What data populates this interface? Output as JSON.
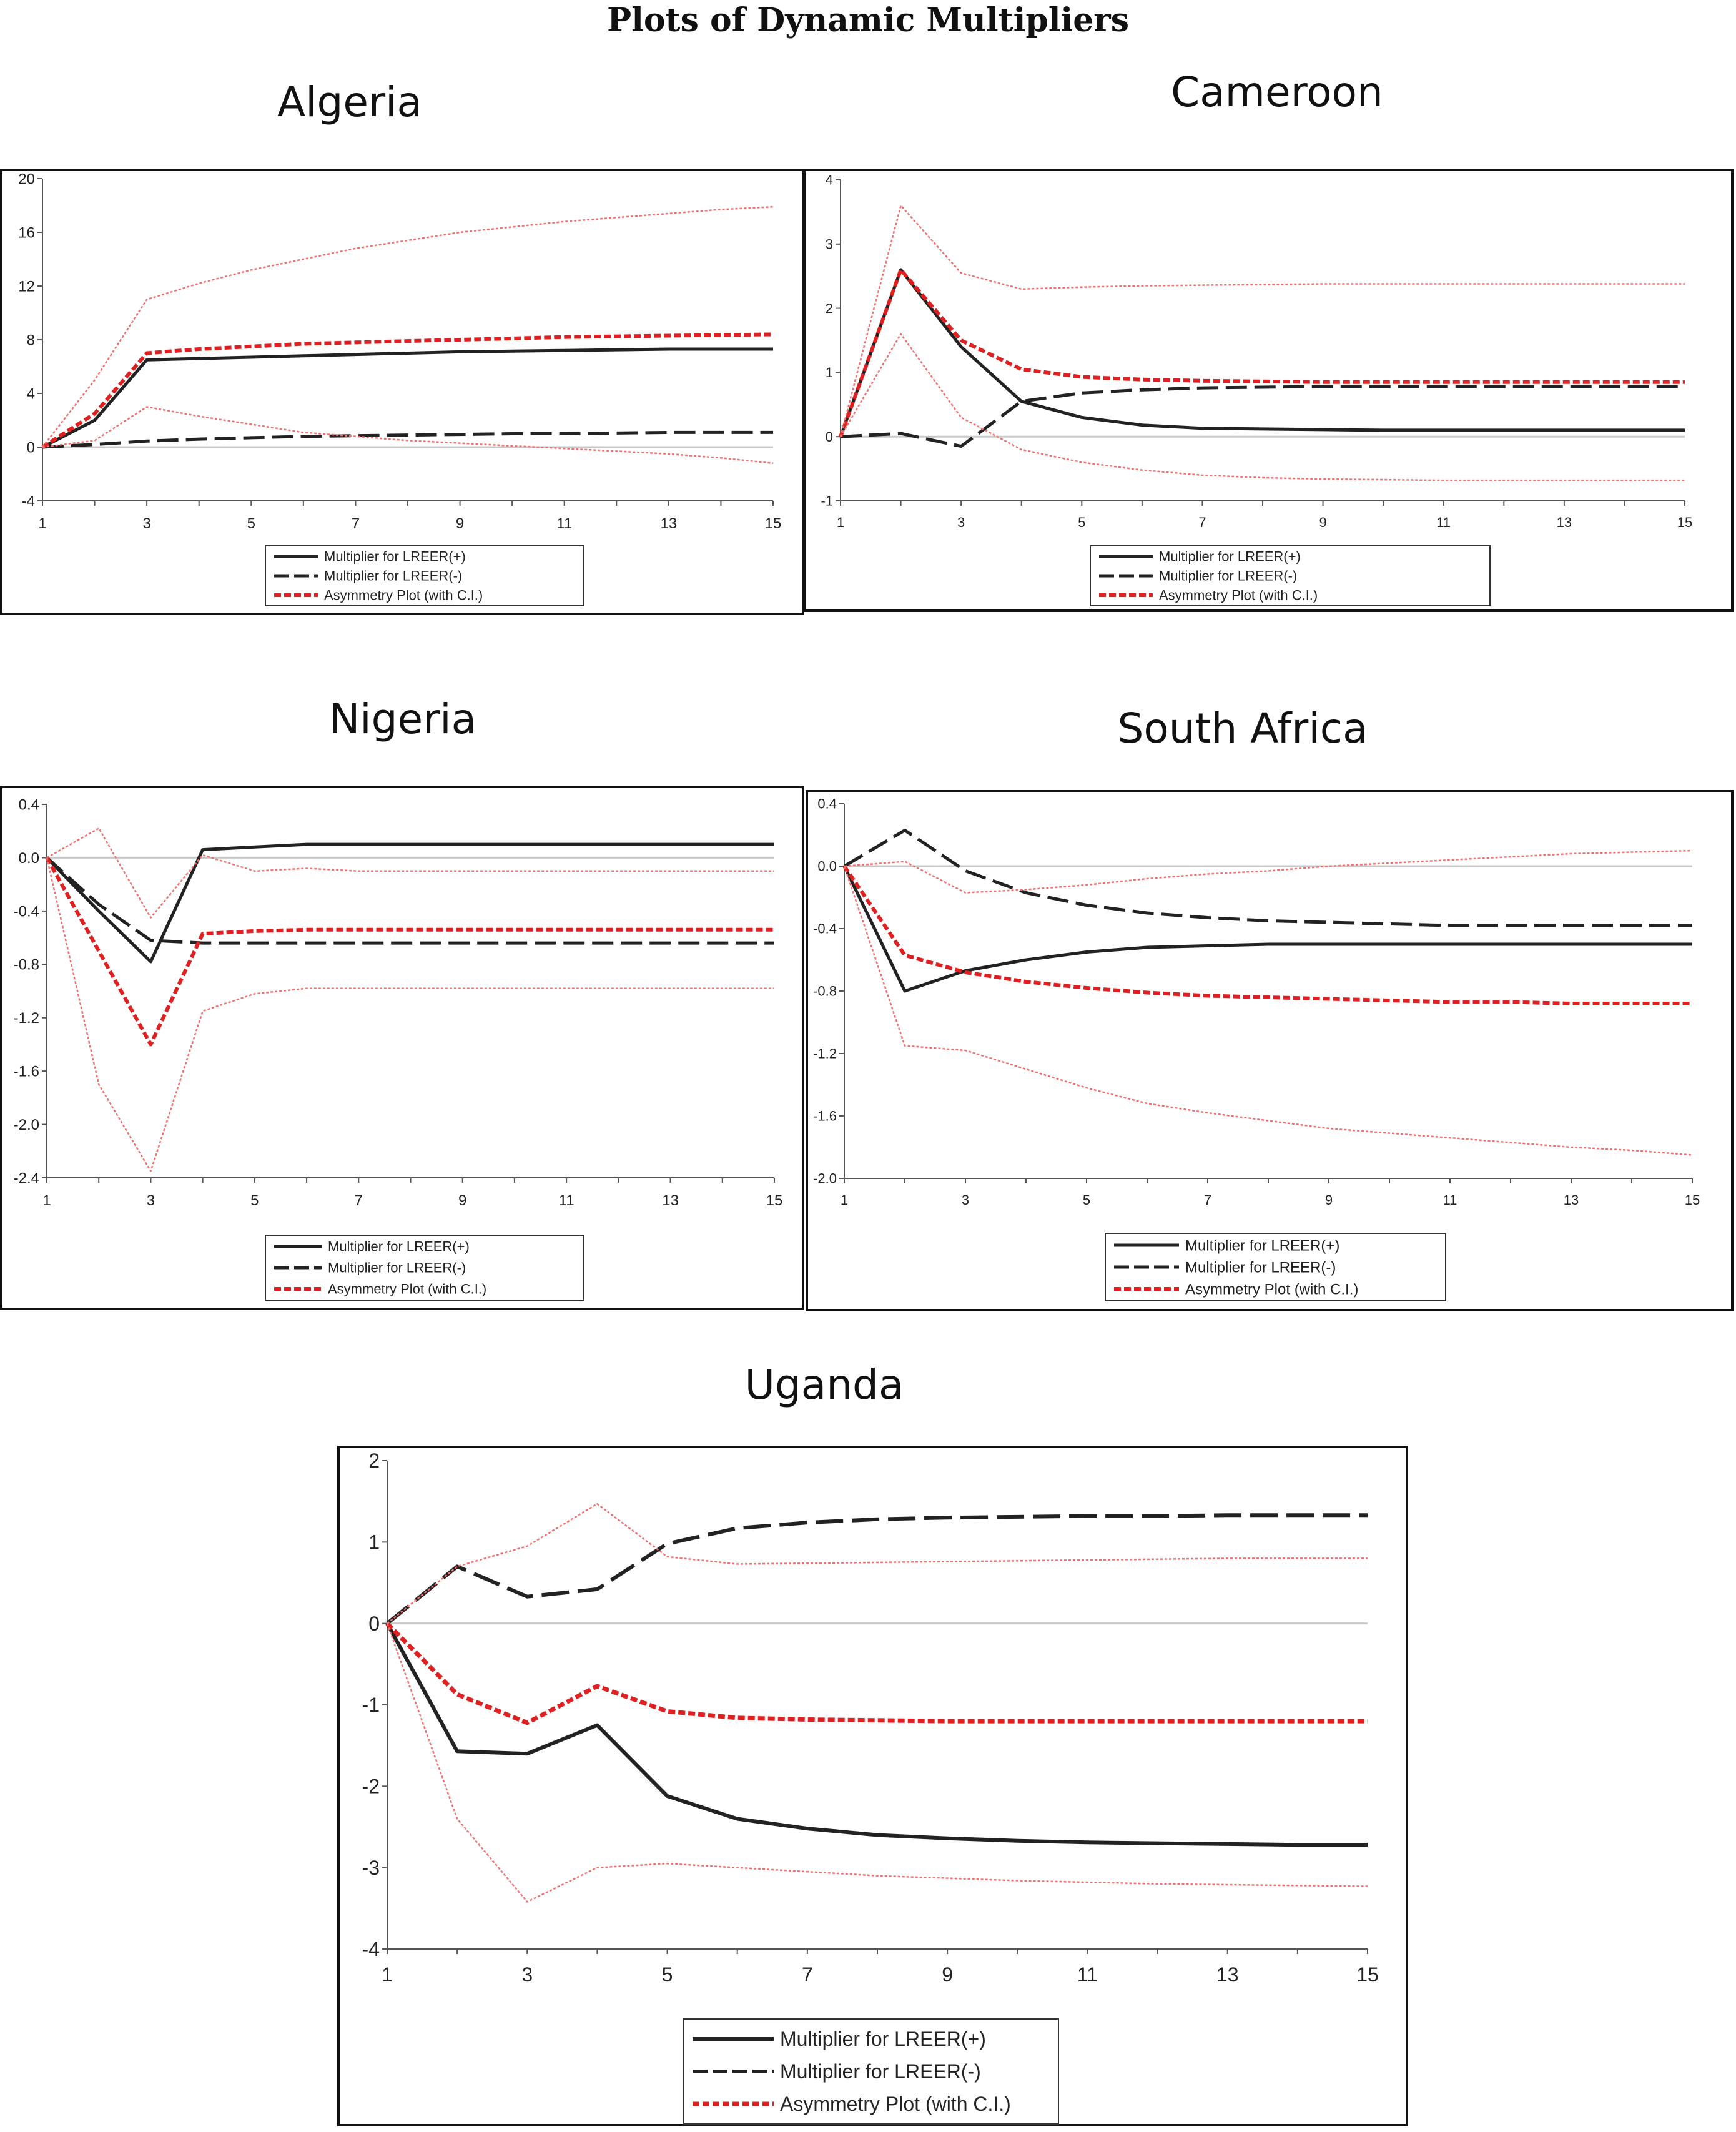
{
  "figure_title": "Plots of Dynamic Multipliers",
  "legend_labels": [
    "Multiplier for LREER(+)",
    "Multiplier for LREER(-)",
    "Asymmetry Plot (with C.I.)"
  ],
  "colors": {
    "positive_multiplier": "#222222",
    "negative_multiplier": "#222222",
    "asymmetry": "#e02020",
    "confidence_band": "#f07070",
    "zero_line": "#c8c8c8"
  },
  "chart_data": [
    {
      "country": "Algeria",
      "type": "line",
      "x": [
        1,
        2,
        3,
        4,
        5,
        6,
        7,
        8,
        9,
        10,
        11,
        12,
        13,
        14,
        15
      ],
      "xticks": [
        1,
        3,
        5,
        7,
        9,
        11,
        13,
        15
      ],
      "yticks": [
        -4,
        0,
        4,
        8,
        12,
        16,
        20
      ],
      "ylim": [
        -4,
        20
      ],
      "grid": false,
      "legend_placement": "bottom",
      "series": [
        {
          "name": "Multiplier for LREER(+)",
          "style": "solid",
          "values": [
            0,
            2,
            6.5,
            6.6,
            6.7,
            6.8,
            6.9,
            7.0,
            7.1,
            7.15,
            7.2,
            7.25,
            7.3,
            7.3,
            7.3
          ]
        },
        {
          "name": "Multiplier for LREER(-)",
          "style": "dashed",
          "values": [
            0,
            0.2,
            0.45,
            0.6,
            0.7,
            0.8,
            0.85,
            0.9,
            0.95,
            1.0,
            1.0,
            1.05,
            1.1,
            1.1,
            1.1
          ]
        },
        {
          "name": "Asymmetry Plot (with C.I.)",
          "style": "dotted",
          "values": [
            0,
            2.5,
            7.0,
            7.3,
            7.5,
            7.7,
            7.8,
            7.9,
            8.0,
            8.1,
            8.2,
            8.25,
            8.3,
            8.35,
            8.4
          ]
        },
        {
          "style": "band",
          "values": [
            0,
            5,
            11,
            12.2,
            13.2,
            14,
            14.8,
            15.4,
            16,
            16.4,
            16.8,
            17.1,
            17.4,
            17.7,
            17.9
          ]
        },
        {
          "style": "band",
          "values": [
            0,
            0.5,
            3.0,
            2.3,
            1.7,
            1.1,
            0.8,
            0.5,
            0.3,
            0.1,
            -0.1,
            -0.3,
            -0.5,
            -0.8,
            -1.2
          ]
        }
      ]
    },
    {
      "country": "Cameroon",
      "type": "line",
      "x": [
        1,
        2,
        3,
        4,
        5,
        6,
        7,
        8,
        9,
        10,
        11,
        12,
        13,
        14,
        15
      ],
      "xticks": [
        1,
        3,
        5,
        7,
        9,
        11,
        13,
        15
      ],
      "yticks": [
        -1,
        0,
        1,
        2,
        3,
        4
      ],
      "ylim": [
        -1,
        4
      ],
      "grid": false,
      "legend_placement": "bottom",
      "series": [
        {
          "name": "Multiplier for LREER(+)",
          "style": "solid",
          "values": [
            0,
            2.6,
            1.4,
            0.55,
            0.3,
            0.18,
            0.13,
            0.12,
            0.11,
            0.1,
            0.1,
            0.1,
            0.1,
            0.1,
            0.1
          ]
        },
        {
          "name": "Multiplier for LREER(-)",
          "style": "dashed",
          "values": [
            0,
            0.05,
            -0.15,
            0.55,
            0.68,
            0.73,
            0.76,
            0.77,
            0.78,
            0.78,
            0.78,
            0.78,
            0.78,
            0.78,
            0.78
          ]
        },
        {
          "name": "Asymmetry Plot (with C.I.)",
          "style": "dotted",
          "values": [
            0,
            2.6,
            1.5,
            1.05,
            0.93,
            0.89,
            0.87,
            0.86,
            0.85,
            0.85,
            0.85,
            0.85,
            0.85,
            0.85,
            0.85
          ]
        },
        {
          "style": "band",
          "values": [
            0,
            3.6,
            2.55,
            2.3,
            2.33,
            2.35,
            2.36,
            2.37,
            2.38,
            2.38,
            2.38,
            2.38,
            2.38,
            2.38,
            2.38
          ]
        },
        {
          "style": "band",
          "values": [
            0,
            1.6,
            0.3,
            -0.2,
            -0.4,
            -0.52,
            -0.6,
            -0.64,
            -0.66,
            -0.67,
            -0.68,
            -0.68,
            -0.68,
            -0.68,
            -0.68
          ]
        }
      ]
    },
    {
      "country": "Nigeria",
      "type": "line",
      "x": [
        1,
        2,
        3,
        4,
        5,
        6,
        7,
        8,
        9,
        10,
        11,
        12,
        13,
        14,
        15
      ],
      "xticks": [
        1,
        3,
        5,
        7,
        9,
        11,
        13,
        15
      ],
      "yticks": [
        -2.4,
        -2.0,
        -1.6,
        -1.2,
        -0.8,
        -0.4,
        0.0,
        0.4
      ],
      "ytick_labels": [
        "-2.4",
        "-2.0",
        "-1.6",
        "-1.2",
        "-0.8",
        "-0.4",
        "0.0",
        "0.4"
      ],
      "ylim": [
        -2.4,
        0.4
      ],
      "grid": false,
      "legend_placement": "bottom",
      "series": [
        {
          "name": "Multiplier for LREER(+)",
          "style": "solid",
          "values": [
            0,
            -0.4,
            -0.78,
            0.06,
            0.08,
            0.1,
            0.1,
            0.1,
            0.1,
            0.1,
            0.1,
            0.1,
            0.1,
            0.1,
            0.1
          ]
        },
        {
          "name": "Multiplier for LREER(-)",
          "style": "dashed",
          "values": [
            0,
            -0.35,
            -0.62,
            -0.64,
            -0.64,
            -0.64,
            -0.64,
            -0.64,
            -0.64,
            -0.64,
            -0.64,
            -0.64,
            -0.64,
            -0.64,
            -0.64
          ]
        },
        {
          "name": "Asymmetry Plot (with C.I.)",
          "style": "dotted",
          "values": [
            0,
            -0.7,
            -1.4,
            -0.57,
            -0.55,
            -0.54,
            -0.54,
            -0.54,
            -0.54,
            -0.54,
            -0.54,
            -0.54,
            -0.54,
            -0.54,
            -0.54
          ]
        },
        {
          "style": "band",
          "values": [
            0,
            0.22,
            -0.45,
            0.02,
            -0.1,
            -0.08,
            -0.1,
            -0.1,
            -0.1,
            -0.1,
            -0.1,
            -0.1,
            -0.1,
            -0.1,
            -0.1
          ]
        },
        {
          "style": "band",
          "values": [
            0,
            -1.7,
            -2.35,
            -1.15,
            -1.02,
            -0.98,
            -0.98,
            -0.98,
            -0.98,
            -0.98,
            -0.98,
            -0.98,
            -0.98,
            -0.98,
            -0.98
          ]
        }
      ]
    },
    {
      "country": "South Africa",
      "type": "line",
      "x": [
        1,
        2,
        3,
        4,
        5,
        6,
        7,
        8,
        9,
        10,
        11,
        12,
        13,
        14,
        15
      ],
      "xticks": [
        1,
        3,
        5,
        7,
        9,
        11,
        13,
        15
      ],
      "yticks": [
        -2.0,
        -1.6,
        -1.2,
        -0.8,
        -0.4,
        0.0,
        0.4
      ],
      "ytick_labels": [
        "-2.0",
        "-1.6",
        "-1.2",
        "-0.8",
        "-0.4",
        "0.0",
        "0.4"
      ],
      "ylim": [
        -2.0,
        0.4
      ],
      "grid": false,
      "legend_placement": "bottom",
      "series": [
        {
          "name": "Multiplier for LREER(+)",
          "style": "solid",
          "values": [
            0,
            -0.8,
            -0.67,
            -0.6,
            -0.55,
            -0.52,
            -0.51,
            -0.5,
            -0.5,
            -0.5,
            -0.5,
            -0.5,
            -0.5,
            -0.5,
            -0.5
          ]
        },
        {
          "name": "Multiplier for LREER(-)",
          "style": "dashed",
          "values": [
            0,
            0.23,
            -0.03,
            -0.17,
            -0.25,
            -0.3,
            -0.33,
            -0.35,
            -0.36,
            -0.37,
            -0.38,
            -0.38,
            -0.38,
            -0.38,
            -0.38
          ]
        },
        {
          "name": "Asymmetry Plot (with C.I.)",
          "style": "dotted",
          "values": [
            0,
            -0.57,
            -0.68,
            -0.74,
            -0.78,
            -0.81,
            -0.83,
            -0.84,
            -0.85,
            -0.86,
            -0.87,
            -0.87,
            -0.88,
            -0.88,
            -0.88
          ]
        },
        {
          "style": "band",
          "values": [
            0,
            0.03,
            -0.17,
            -0.15,
            -0.12,
            -0.08,
            -0.05,
            -0.03,
            0,
            0.02,
            0.04,
            0.06,
            0.08,
            0.09,
            0.1
          ]
        },
        {
          "style": "band",
          "values": [
            0,
            -1.15,
            -1.18,
            -1.3,
            -1.42,
            -1.52,
            -1.58,
            -1.63,
            -1.68,
            -1.71,
            -1.74,
            -1.77,
            -1.8,
            -1.82,
            -1.85
          ]
        }
      ]
    },
    {
      "country": "Uganda",
      "type": "line",
      "x": [
        1,
        2,
        3,
        4,
        5,
        6,
        7,
        8,
        9,
        10,
        11,
        12,
        13,
        14,
        15
      ],
      "xticks": [
        1,
        3,
        5,
        7,
        9,
        11,
        13,
        15
      ],
      "yticks": [
        -4,
        -3,
        -2,
        -1,
        0,
        1,
        2
      ],
      "ylim": [
        -4,
        2
      ],
      "grid": false,
      "legend_placement": "bottom",
      "series": [
        {
          "name": "Multiplier for LREER(+)",
          "style": "solid",
          "values": [
            0,
            -1.57,
            -1.6,
            -1.25,
            -2.12,
            -2.4,
            -2.52,
            -2.6,
            -2.64,
            -2.67,
            -2.69,
            -2.7,
            -2.71,
            -2.72,
            -2.72
          ]
        },
        {
          "name": "Multiplier for LREER(-)",
          "style": "dashed",
          "values": [
            0,
            0.7,
            0.33,
            0.42,
            0.98,
            1.17,
            1.24,
            1.28,
            1.3,
            1.31,
            1.32,
            1.32,
            1.33,
            1.33,
            1.33
          ]
        },
        {
          "name": "Asymmetry Plot (with C.I.)",
          "style": "dotted",
          "values": [
            0,
            -0.87,
            -1.22,
            -0.77,
            -1.08,
            -1.16,
            -1.18,
            -1.19,
            -1.2,
            -1.2,
            -1.2,
            -1.2,
            -1.2,
            -1.2,
            -1.2
          ]
        },
        {
          "style": "band",
          "values": [
            0,
            0.7,
            0.95,
            1.47,
            0.82,
            0.73,
            0.74,
            0.75,
            0.76,
            0.77,
            0.78,
            0.79,
            0.8,
            0.8,
            0.8
          ]
        },
        {
          "style": "band",
          "values": [
            0,
            -2.4,
            -3.42,
            -3.0,
            -2.95,
            -3.0,
            -3.05,
            -3.1,
            -3.13,
            -3.16,
            -3.18,
            -3.2,
            -3.21,
            -3.22,
            -3.23
          ]
        }
      ]
    }
  ]
}
